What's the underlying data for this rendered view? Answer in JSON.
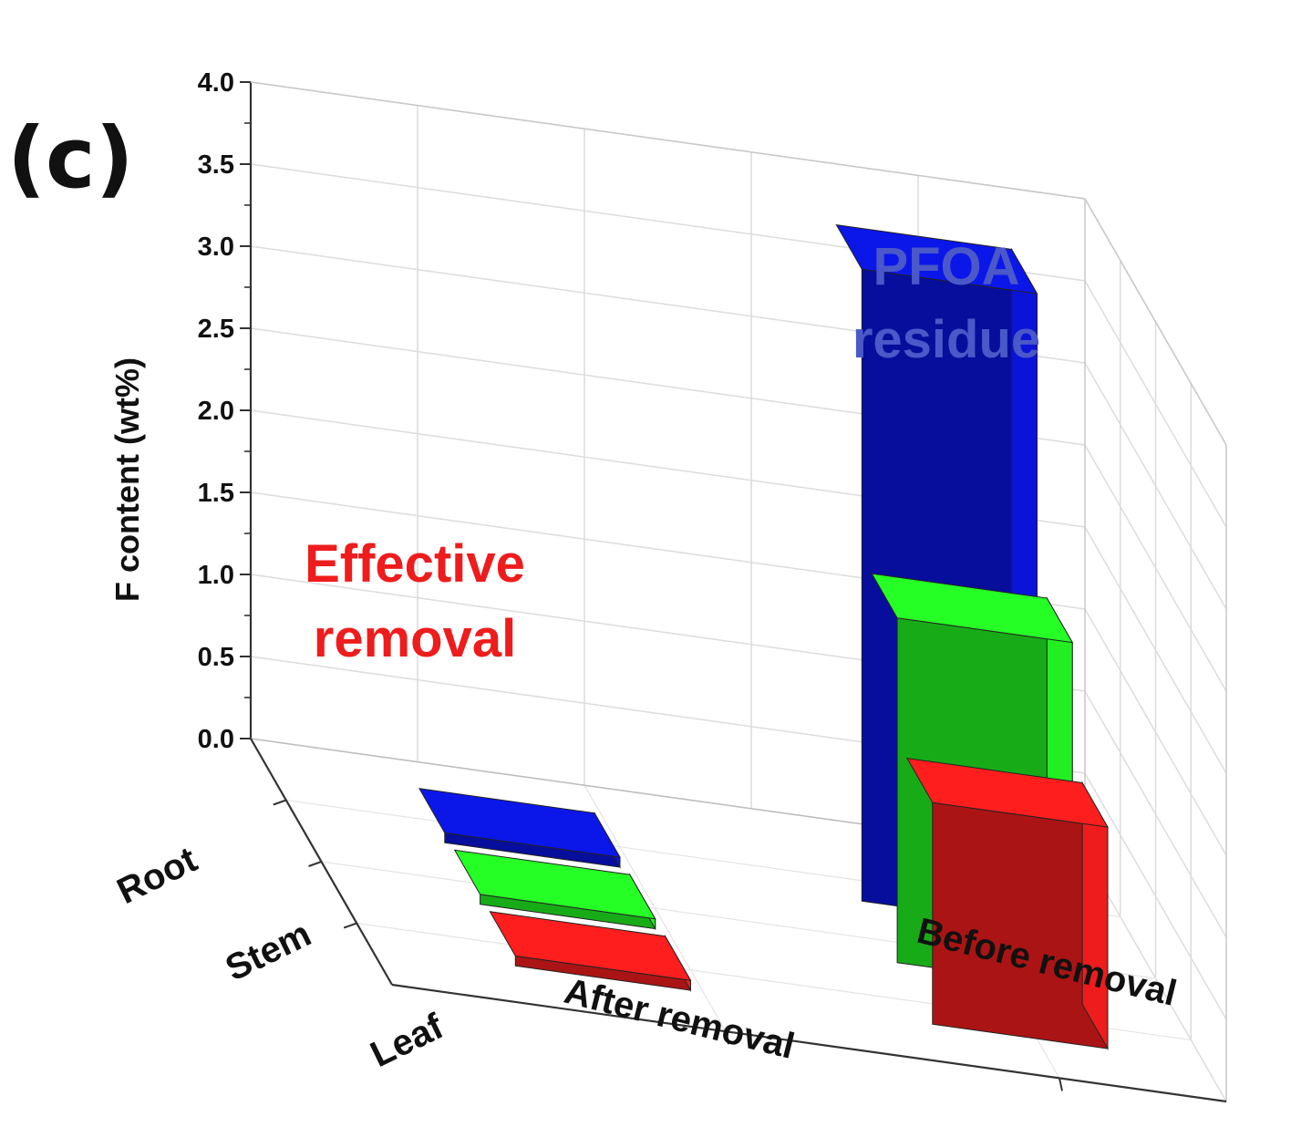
{
  "panel_label": "(c)",
  "annotations": {
    "residue": {
      "line1": "PFOA",
      "line2": "residue",
      "color": "#4a58c8"
    },
    "removal": {
      "line1": "Effective",
      "line2": "removal",
      "color": "#ee1c1c"
    }
  },
  "chart_data": {
    "type": "bar",
    "title": "",
    "ylabel": "F content (wt%)",
    "ylim": [
      0,
      4.0
    ],
    "yticks": [
      "0.0",
      "0.5",
      "1.0",
      "1.5",
      "2.0",
      "2.5",
      "3.0",
      "3.5",
      "4.0"
    ],
    "categories": [
      "After removal",
      "Before removal"
    ],
    "depth_categories": [
      "Root",
      "Stem",
      "Leaf"
    ],
    "series": [
      {
        "name": "Root",
        "values": [
          0.02,
          3.85
        ],
        "color": "#0a14d8"
      },
      {
        "name": "Stem",
        "values": [
          0.02,
          2.1
        ],
        "color": "#22ee22"
      },
      {
        "name": "Leaf",
        "values": [
          0.02,
          1.35
        ],
        "color": "#ee1c1c"
      }
    ],
    "grid": true
  }
}
